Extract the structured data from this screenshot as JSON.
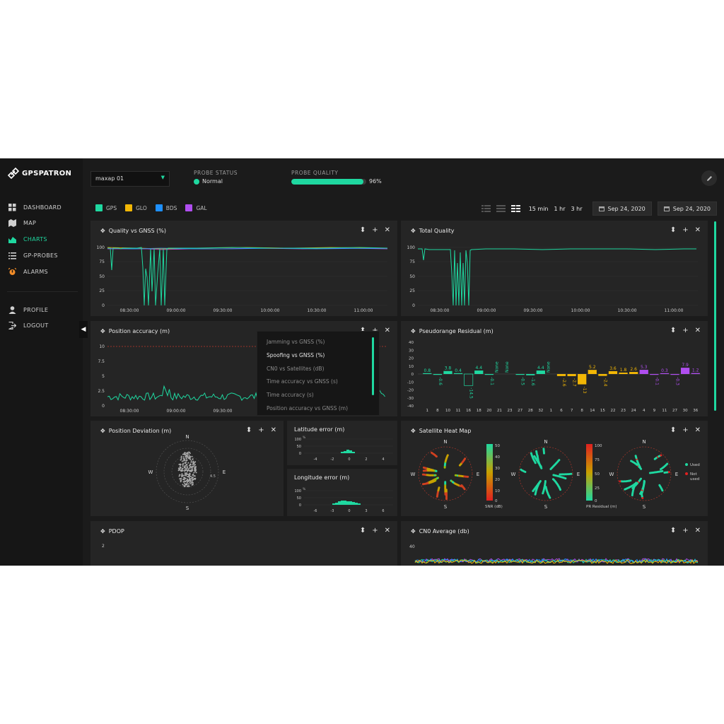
{
  "app": {
    "brand": "GPSPATRON"
  },
  "nav": [
    {
      "label": "DASHBOARD",
      "icon": "grid-icon"
    },
    {
      "label": "MAP",
      "icon": "map-icon"
    },
    {
      "label": "CHARTS",
      "icon": "chart-icon",
      "active": true
    },
    {
      "label": "GP-PROBES",
      "icon": "list-icon"
    },
    {
      "label": "ALARMS",
      "icon": "alarm-icon"
    },
    {
      "label": "PROFILE",
      "icon": "user-icon"
    },
    {
      "label": "LOGOUT",
      "icon": "logout-icon"
    }
  ],
  "header": {
    "probe_select": "maxap 01",
    "probe_status_label": "PROBE STATUS",
    "probe_status_value": "Normal",
    "probe_quality_label": "PROBE QUALITY",
    "probe_quality_value": "96%",
    "probe_quality_fraction": 0.96
  },
  "legend": [
    {
      "label": "GPS",
      "color": "#1fd8a0"
    },
    {
      "label": "GLO",
      "color": "#f2b705"
    },
    {
      "label": "BDS",
      "color": "#1e90ff"
    },
    {
      "label": "GAL",
      "color": "#b04ef0"
    }
  ],
  "ranges": [
    "15 min",
    "1 hr",
    "3 hr"
  ],
  "dates": {
    "from": "Sep 24, 2020",
    "to": "Sep 24, 2020"
  },
  "panels": {
    "quality_gnss": {
      "title": "Quality vs GNSS (%)",
      "y_ticks": [
        "100",
        "75",
        "50",
        "25",
        "0"
      ],
      "x_ticks": [
        "08:30:00",
        "09:00:00",
        "09:30:00",
        "10:00:00",
        "10:30:00",
        "11:00:00"
      ]
    },
    "total_quality": {
      "title": "Total Quality",
      "y_ticks": [
        "100",
        "75",
        "50",
        "25",
        "0"
      ],
      "x_ticks": [
        "08:30:00",
        "09:00:00",
        "09:30:00",
        "10:00:00",
        "10:30:00",
        "11:00:00"
      ]
    },
    "position_accuracy": {
      "title": "Position accuracy (m)",
      "y_ticks": [
        "10",
        "7.5",
        "5",
        "2.5",
        "0"
      ],
      "x_ticks": [
        "08:30:00",
        "09:00:00",
        "09:30:00"
      ]
    },
    "pseudorange": {
      "title": "Pseudorange Residual (m)",
      "y_ticks": [
        "40",
        "30",
        "20",
        "10",
        "0",
        "-10",
        "-20",
        "-30",
        "-40"
      ]
    },
    "position_deviation": {
      "title": "Position Deviation (m)",
      "ring_label": "4.5",
      "compass": {
        "n": "N",
        "s": "S",
        "e": "E",
        "w": "W"
      }
    },
    "latitude_error": {
      "title": "Latitude error (m)",
      "y_ticks": [
        "100",
        "50",
        "0"
      ],
      "y_unit": "%",
      "x_ticks": [
        "-4",
        "-2",
        "0",
        "2",
        "4"
      ]
    },
    "longitude_error": {
      "title": "Longitude error (m)",
      "y_ticks": [
        "100",
        "50",
        "0"
      ],
      "y_unit": "%",
      "x_ticks": [
        "-6",
        "-3",
        "0",
        "3",
        "6"
      ]
    },
    "heatmap": {
      "title": "Satellite Heat Map",
      "compass": {
        "n": "N",
        "s": "S",
        "e": "E",
        "w": "W"
      },
      "snr_ticks": [
        "50",
        "40",
        "30",
        "20",
        "10",
        "0"
      ],
      "snr_label": "SNR (dB)",
      "pr_ticks": [
        "100",
        "75",
        "50",
        "25",
        "0"
      ],
      "pr_label": "PR Residual (m)",
      "used_label": "Used",
      "not_used_label": "Not used"
    },
    "pdop": {
      "title": "PDOP",
      "y_ticks": [
        "2"
      ]
    },
    "cn0": {
      "title": "CN0 Average (db)",
      "y_ticks": [
        "40"
      ]
    }
  },
  "dropdown": {
    "items": [
      "Jamming vs GNSS (%)",
      "Spoofing vs GNSS (%)",
      "CN0 vs Satellites (dB)",
      "Time accuracy vs GNSS (s)",
      "Time accuracy (s)",
      "Position accuracy vs GNSS (m)"
    ],
    "selected_index": 1
  },
  "chart_data": [
    {
      "type": "bar",
      "title": "Pseudorange Residual (m)",
      "categories": [
        "1",
        "8",
        "10",
        "11",
        "16",
        "18",
        "20",
        "21",
        "23",
        "27",
        "28",
        "32",
        "1",
        "6",
        "7",
        "8",
        "14",
        "15",
        "22",
        "23",
        "24",
        "4",
        "9",
        "11",
        "27",
        "30",
        "36"
      ],
      "series": [
        {
          "name": "GPS",
          "color": "#1fd8a0",
          "values": [
            0.8,
            -0.6,
            3.8,
            0.4,
            -14.5,
            4.4,
            -0.1,
            null,
            null,
            -0.5,
            -1.6,
            4.4,
            null,
            null,
            null,
            null,
            null,
            null,
            null,
            null,
            null,
            null,
            null,
            null,
            null,
            null,
            null
          ]
        },
        {
          "name": "GLO",
          "color": "#f2b705",
          "values": [
            null,
            null,
            null,
            null,
            null,
            null,
            null,
            null,
            null,
            null,
            null,
            null,
            null,
            -2.6,
            -2.7,
            -13,
            5.2,
            -2.4,
            3.6,
            1.8,
            2.6,
            null,
            null,
            null,
            null,
            null,
            null
          ]
        },
        {
          "name": "GAL",
          "color": "#b04ef0",
          "values": [
            null,
            null,
            null,
            null,
            null,
            null,
            null,
            null,
            null,
            null,
            null,
            null,
            null,
            null,
            null,
            null,
            null,
            null,
            null,
            null,
            null,
            5.3,
            -0.1,
            0.3,
            -0.3,
            7.9,
            1.2
          ]
        }
      ],
      "data_labels": [
        "0.8",
        "-0.6",
        "3.8",
        "0.4",
        "-14.5",
        "4.4",
        "-0.1",
        "None",
        "None",
        "-0.5",
        "-1.6",
        "4.4",
        "None",
        "-2.6",
        "-2.7",
        "-13",
        "5.2",
        "-2.4",
        "3.6",
        "1.8",
        "2.6",
        "5.3",
        "-0.1",
        "0.3",
        "-0.3",
        "7.9",
        "1.2"
      ],
      "ylim": [
        -40,
        40
      ]
    }
  ]
}
